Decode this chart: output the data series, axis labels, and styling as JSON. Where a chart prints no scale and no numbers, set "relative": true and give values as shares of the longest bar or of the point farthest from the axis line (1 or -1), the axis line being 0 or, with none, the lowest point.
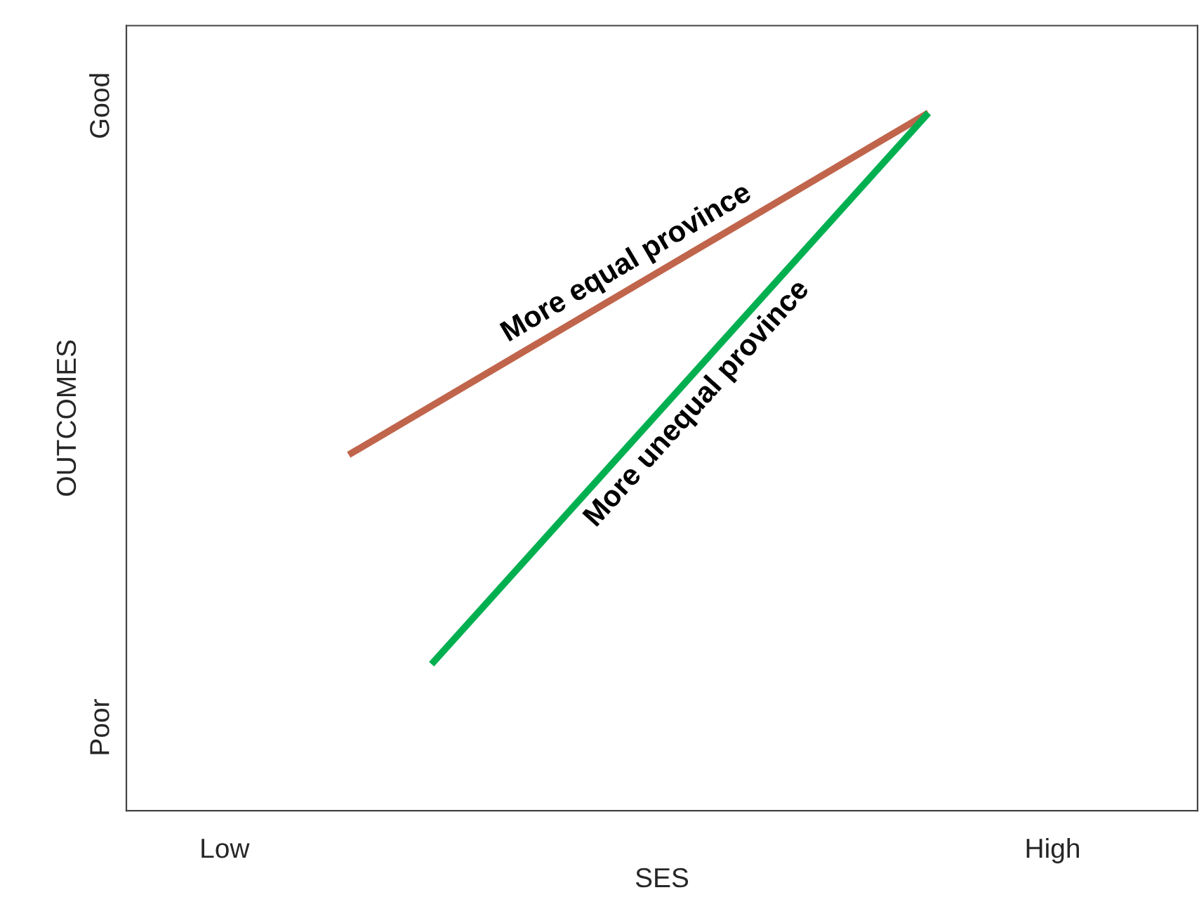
{
  "chart_data": {
    "type": "line",
    "xlabel": "SES",
    "ylabel": "OUTCOMES",
    "relative": true,
    "categories": [
      "Low",
      null,
      null,
      null,
      null,
      null,
      null,
      null,
      null,
      null,
      null,
      null,
      null,
      null,
      null,
      null,
      null,
      null,
      null,
      null,
      "High"
    ],
    "annotations": [
      "Poor",
      "Good"
    ],
    "grid": false,
    "legend": false,
    "marker": "none",
    "line_style": "solid",
    "series": [
      {
        "name": "More equal province",
        "color": "#c0654c",
        "values": [
          null,
          null,
          null,
          0.51,
          null,
          null,
          null,
          null,
          null,
          null,
          null,
          null,
          null,
          null,
          null,
          null,
          null,
          1,
          null,
          null,
          null
        ]
      },
      {
        "name": "More unequal province",
        "color": "#00b050",
        "values": [
          null,
          null,
          null,
          null,
          null,
          0.21,
          null,
          null,
          null,
          null,
          null,
          null,
          null,
          null,
          null,
          null,
          null,
          1,
          null,
          null,
          null
        ]
      }
    ]
  }
}
